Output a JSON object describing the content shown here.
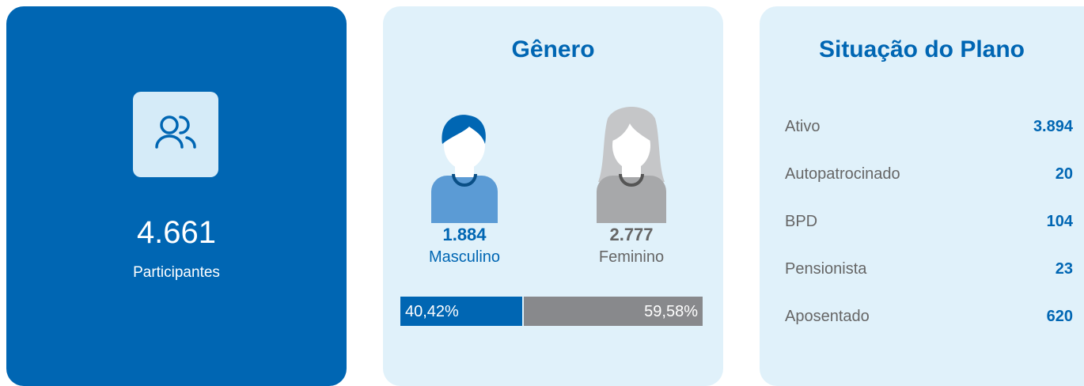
{
  "participants": {
    "count": "4.661",
    "label": "Participantes"
  },
  "gender": {
    "title": "Gênero",
    "male": {
      "count": "1.884",
      "label": "Masculino",
      "share": {
        "value": 40.42,
        "label": "40,42%"
      }
    },
    "female": {
      "count": "2.777",
      "label": "Feminino",
      "share": {
        "value": 59.58,
        "label": "59,58%"
      }
    }
  },
  "plan": {
    "title": "Situação do Plano",
    "rows": [
      {
        "label": "Ativo",
        "value": "3.894"
      },
      {
        "label": "Autopatrocinado",
        "value": "20"
      },
      {
        "label": "BPD",
        "value": "104"
      },
      {
        "label": "Pensionista",
        "value": "23"
      },
      {
        "label": "Aposentado",
        "value": "620"
      }
    ]
  }
}
